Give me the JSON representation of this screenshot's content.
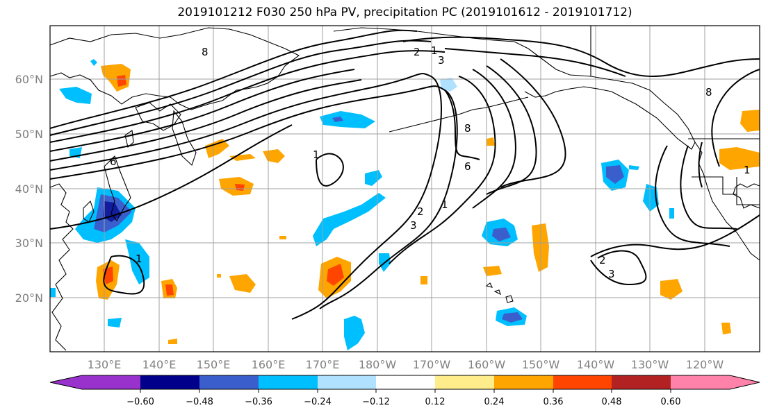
{
  "title": "2019101212 F030 250 hPa PV, precipitation PC (2019101612 - 2019101712)",
  "lat_labels": [
    "60°N",
    "50°N",
    "40°N",
    "30°N",
    "20°N"
  ],
  "lon_labels": [
    "130°E",
    "140°E",
    "150°E",
    "160°E",
    "170°E",
    "180°W",
    "170°W",
    "160°W",
    "150°W",
    "140°W",
    "130°W",
    "120°W"
  ],
  "colorbar": {
    "ticks": [
      "−0.60",
      "−0.48",
      "−0.36",
      "−0.24",
      "−0.12",
      "0.12",
      "0.24",
      "0.36",
      "0.48",
      "0.60"
    ],
    "colors": [
      "#9932cc",
      "#00008b",
      "#3a5fcd",
      "#00bfff",
      "#b0e2ff",
      "#ffffff",
      "#ffec8b",
      "#ffa500",
      "#ff4500",
      "#b22222",
      "#ff82ab"
    ]
  },
  "contour_labels": [
    "8",
    "1",
    "2",
    "3",
    "1",
    "8",
    "6",
    "1",
    "2",
    "3",
    "6",
    "8",
    "1",
    "2",
    "3",
    "1"
  ]
}
